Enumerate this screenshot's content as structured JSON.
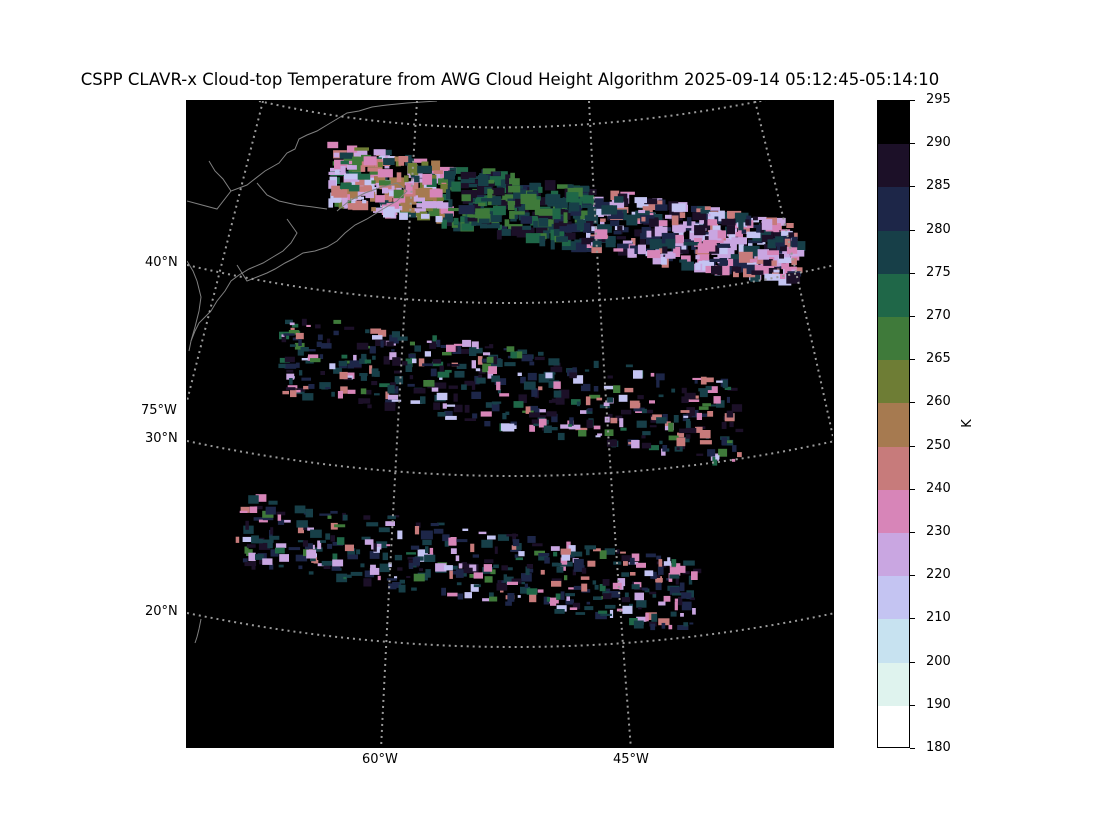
{
  "title": "CSPP CLAVR-x Cloud-top Temperature from AWG Cloud Height Algorithm 2025-09-14 05:12:45-05:14:10",
  "map": {
    "background": "#000000",
    "coastline_color": "#808080",
    "graticule_color": "#9a9a9a",
    "lat_labels": [
      {
        "text": "40°N"
      },
      {
        "text": "30°N"
      },
      {
        "text": "20°N"
      }
    ],
    "lon_labels": [
      {
        "text": "75°W"
      },
      {
        "text": "60°W"
      },
      {
        "text": "45°W"
      }
    ]
  },
  "colorbar": {
    "unit": "K",
    "ticks": [
      "295",
      "290",
      "285",
      "280",
      "275",
      "270",
      "265",
      "260",
      "250",
      "240",
      "230",
      "220",
      "210",
      "200",
      "190",
      "180"
    ],
    "colors": [
      "#000000",
      "#1c1028",
      "#1d2648",
      "#173f48",
      "#1f6748",
      "#3f7a3a",
      "#6e7d35",
      "#a67a50",
      "#c77b7b",
      "#d785b8",
      "#c9a6e1",
      "#c4c4f2",
      "#c7e2f0",
      "#dff3ee",
      "#ffffff"
    ]
  },
  "chart_data": {
    "type": "heatmap",
    "title": "CSPP CLAVR-x Cloud-top Temperature from AWG Cloud Height Algorithm 2025-09-14 05:12:45-05:14:10",
    "colorbar_unit": "K",
    "colorbar_range": [
      180,
      295
    ],
    "colorbar_levels": [
      295,
      290,
      285,
      280,
      275,
      270,
      265,
      260,
      250,
      240,
      230,
      220,
      210,
      200,
      190,
      180
    ],
    "latitude_labels": [
      "40°N",
      "30°N",
      "20°N"
    ],
    "longitude_labels": [
      "75°W",
      "60°W",
      "45°W"
    ],
    "grid": true
  }
}
